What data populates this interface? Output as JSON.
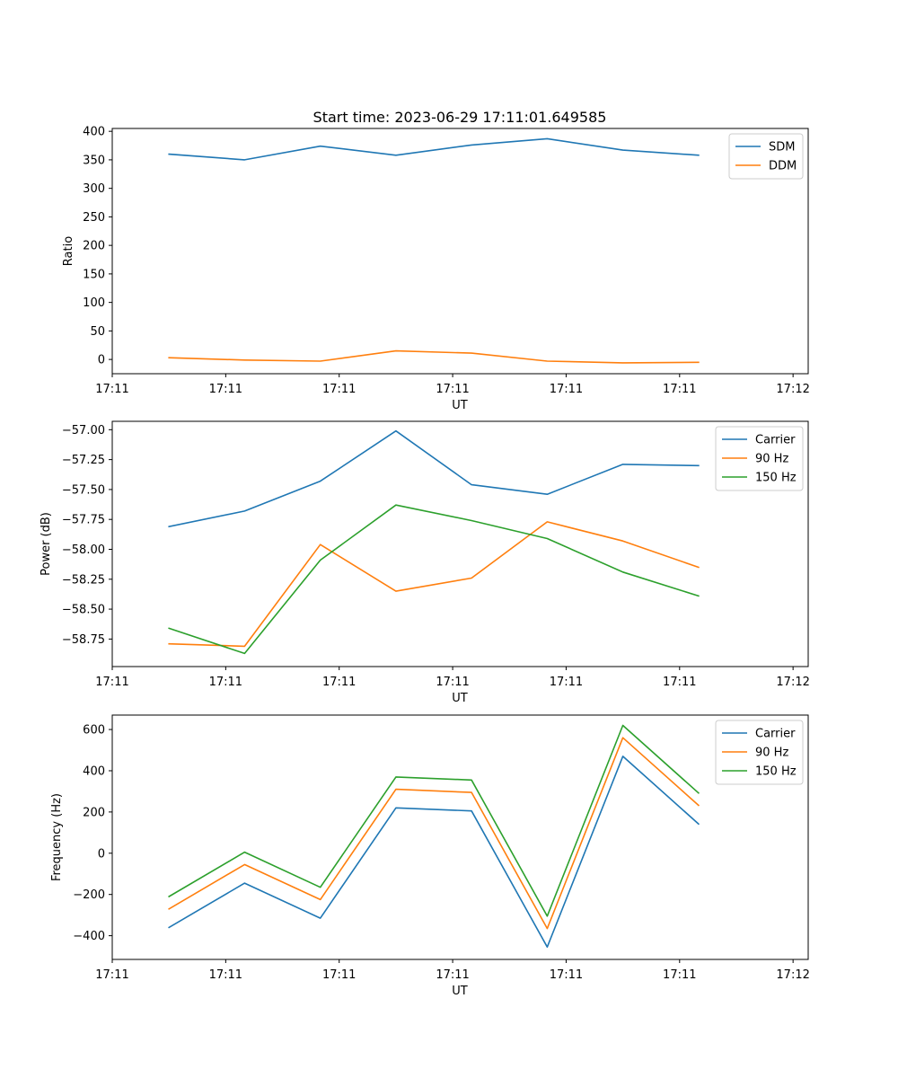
{
  "figure_title": "Start time: 2023-06-29 17:11:01.649585",
  "chart_data": [
    {
      "type": "line",
      "title": "Start time: 2023-06-29 17:11:01.649585",
      "xlabel": "UT",
      "ylabel": "Ratio",
      "xlim": [
        -0.75,
        8.45
      ],
      "ylim": [
        -25,
        405
      ],
      "x": [
        0,
        1,
        2,
        3,
        4,
        5,
        6,
        7
      ],
      "x_tick_positions": [
        -0.75,
        0.75,
        2.25,
        3.75,
        5.25,
        6.75,
        8.25
      ],
      "x_tick_labels": [
        "17:11",
        "17:11",
        "17:11",
        "17:11",
        "17:11",
        "17:11",
        "17:12"
      ],
      "y_ticks": [
        0,
        50,
        100,
        150,
        200,
        250,
        300,
        350,
        400
      ],
      "y_tick_labels": [
        "0",
        "50",
        "100",
        "150",
        "200",
        "250",
        "300",
        "350",
        "400"
      ],
      "grid": false,
      "legend": "top-right",
      "series": [
        {
          "name": "SDM",
          "color": "#1f77b4",
          "values": [
            360,
            350,
            374,
            358,
            376,
            387,
            367,
            358
          ]
        },
        {
          "name": "DDM",
          "color": "#ff7f0e",
          "values": [
            3,
            -1,
            -3,
            15,
            11,
            -3,
            -6,
            -5
          ]
        }
      ]
    },
    {
      "type": "line",
      "title": "",
      "xlabel": "UT",
      "ylabel": "Power (dB)",
      "xlim": [
        -0.75,
        8.45
      ],
      "ylim": [
        -58.98,
        -56.93
      ],
      "x": [
        0,
        1,
        2,
        3,
        4,
        5,
        6,
        7
      ],
      "x_tick_positions": [
        -0.75,
        0.75,
        2.25,
        3.75,
        5.25,
        6.75,
        8.25
      ],
      "x_tick_labels": [
        "17:11",
        "17:11",
        "17:11",
        "17:11",
        "17:11",
        "17:11",
        "17:12"
      ],
      "y_ticks": [
        -58.75,
        -58.5,
        -58.25,
        -58.0,
        -57.75,
        -57.5,
        -57.25,
        -57.0
      ],
      "y_tick_labels": [
        "−58.75",
        "−58.50",
        "−58.25",
        "−58.00",
        "−57.75",
        "−57.50",
        "−57.25",
        "−57.00"
      ],
      "grid": false,
      "legend": "top-right",
      "series": [
        {
          "name": "Carrier",
          "color": "#1f77b4",
          "values": [
            -57.81,
            -57.68,
            -57.43,
            -57.01,
            -57.46,
            -57.54,
            -57.29,
            -57.3
          ]
        },
        {
          "name": "90 Hz",
          "color": "#ff7f0e",
          "values": [
            -58.79,
            -58.81,
            -57.96,
            -58.35,
            -58.24,
            -57.77,
            -57.93,
            -58.15
          ]
        },
        {
          "name": "150 Hz",
          "color": "#2ca02c",
          "values": [
            -58.66,
            -58.87,
            -58.09,
            -57.63,
            -57.76,
            -57.91,
            -58.19,
            -58.39
          ]
        }
      ]
    },
    {
      "type": "line",
      "title": "",
      "xlabel": "UT",
      "ylabel": "Frequency (Hz)",
      "xlim": [
        -0.75,
        8.45
      ],
      "ylim": [
        -515,
        670
      ],
      "x": [
        0,
        1,
        2,
        3,
        4,
        5,
        6,
        7
      ],
      "x_tick_positions": [
        -0.75,
        0.75,
        2.25,
        3.75,
        5.25,
        6.75,
        8.25
      ],
      "x_tick_labels": [
        "17:11",
        "17:11",
        "17:11",
        "17:11",
        "17:11",
        "17:11",
        "17:12"
      ],
      "y_ticks": [
        -400,
        -200,
        0,
        200,
        400,
        600
      ],
      "y_tick_labels": [
        "−400",
        "−200",
        "0",
        "200",
        "400",
        "600"
      ],
      "grid": false,
      "legend": "top-right",
      "series": [
        {
          "name": "Carrier",
          "color": "#1f77b4",
          "values": [
            -360,
            -145,
            -315,
            220,
            205,
            -455,
            470,
            142
          ]
        },
        {
          "name": "90 Hz",
          "color": "#ff7f0e",
          "values": [
            -270,
            -55,
            -225,
            310,
            295,
            -365,
            560,
            232
          ]
        },
        {
          "name": "150 Hz",
          "color": "#2ca02c",
          "values": [
            -210,
            5,
            -165,
            370,
            355,
            -305,
            620,
            292
          ]
        }
      ]
    }
  ]
}
